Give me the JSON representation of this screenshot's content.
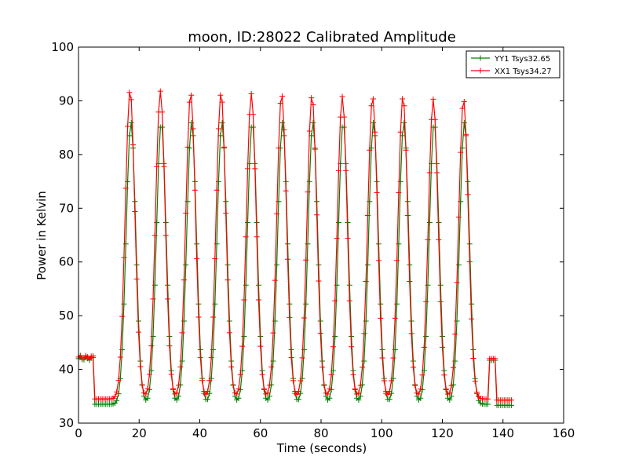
{
  "chart_data": {
    "type": "line",
    "title": "moon, ID:28022 Calibrated Amplitude",
    "xlabel": "Time (seconds)",
    "ylabel": "Power in Kelvin",
    "xlim": [
      0,
      160
    ],
    "ylim": [
      30,
      100
    ],
    "xticks": [
      0,
      20,
      40,
      60,
      80,
      100,
      120,
      140,
      160
    ],
    "yticks": [
      30,
      40,
      50,
      60,
      70,
      80,
      90,
      100
    ],
    "grid": false,
    "legend_position": "top-right",
    "marker": "+",
    "series": [
      {
        "name": "YY1 Tsys32.65",
        "color": "#008000",
        "baseline_start": 42.0,
        "baseline_scan": 33.5,
        "baseline_end": 33.3,
        "peaks": [
          {
            "x": 17.3,
            "y": 86
          },
          {
            "x": 27.3,
            "y": 86
          },
          {
            "x": 37.3,
            "y": 86
          },
          {
            "x": 47.3,
            "y": 86
          },
          {
            "x": 57.3,
            "y": 86
          },
          {
            "x": 67.3,
            "y": 86
          },
          {
            "x": 77.3,
            "y": 86
          },
          {
            "x": 87.3,
            "y": 86
          },
          {
            "x": 97.3,
            "y": 86
          },
          {
            "x": 107.3,
            "y": 86
          },
          {
            "x": 117.3,
            "y": 86
          },
          {
            "x": 127.3,
            "y": 86
          }
        ]
      },
      {
        "name": "XX1 Tsys34.27",
        "color": "#ff0000",
        "baseline_start": 42.3,
        "baseline_scan": 34.5,
        "baseline_end": 34.3,
        "peaks": [
          {
            "x": 17.0,
            "y": 92.0
          },
          {
            "x": 27.0,
            "y": 91.8
          },
          {
            "x": 37.0,
            "y": 91.5
          },
          {
            "x": 47.0,
            "y": 91.5
          },
          {
            "x": 57.0,
            "y": 91.3
          },
          {
            "x": 67.0,
            "y": 91.3
          },
          {
            "x": 77.0,
            "y": 91.0
          },
          {
            "x": 87.0,
            "y": 90.8
          },
          {
            "x": 97.0,
            "y": 90.8
          },
          {
            "x": 107.0,
            "y": 90.8
          },
          {
            "x": 117.0,
            "y": 90.3
          },
          {
            "x": 127.0,
            "y": 90.3
          }
        ]
      }
    ]
  }
}
